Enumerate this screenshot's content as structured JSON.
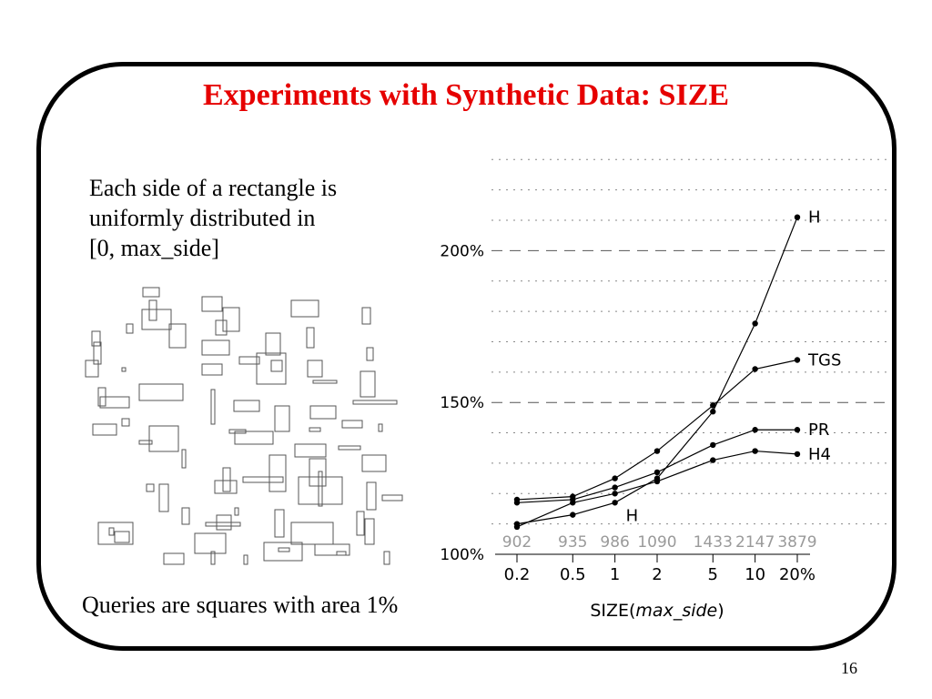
{
  "slide": {
    "title": "Experiments with Synthetic Data: SIZE",
    "description_lines": [
      "Each side of a rectangle is",
      "uniformly distributed in",
      "[0, max_side]"
    ],
    "queries_note": "Queries are squares with area 1%",
    "page_number": "16"
  },
  "colors": {
    "title": "#e60000",
    "line": "#000000",
    "count_labels": "#9a9a9a"
  },
  "chart_data": {
    "type": "line",
    "x": [
      0.2,
      0.5,
      1,
      2,
      5,
      10,
      20
    ],
    "x_tick_labels": [
      "0.2",
      "0.5",
      "1",
      "2",
      "5",
      "10",
      "20%"
    ],
    "x_scale": "log",
    "xlabel_prefix": "SIZE(",
    "xlabel_italic": "max_side",
    "xlabel_suffix": ")",
    "count_labels": [
      "902",
      "935",
      "986",
      "1090",
      "1433",
      "2147",
      "3879"
    ],
    "y_ticks": [
      100,
      150,
      200
    ],
    "y_tick_labels": [
      "100%",
      "150%",
      "200%"
    ],
    "ylim": [
      100,
      222
    ],
    "grid": "horizontal dotted lines, dashed lines at labeled ticks",
    "series": [
      {
        "name": "H",
        "values": [
          110,
          113,
          117,
          125,
          147,
          176,
          211
        ],
        "end_label": "H"
      },
      {
        "name": "TGS",
        "values": [
          118,
          119,
          125,
          134,
          149,
          161,
          164
        ],
        "end_label": "TGS"
      },
      {
        "name": "PR",
        "values": [
          117,
          118,
          122,
          127,
          136,
          141,
          141
        ],
        "end_label": "PR"
      },
      {
        "name": "H4",
        "values": [
          109,
          117,
          120,
          124,
          131,
          134,
          133
        ],
        "end_label": "H4"
      }
    ],
    "annotations": [
      {
        "text": "H",
        "near_series": "H",
        "near_x": 1
      }
    ]
  }
}
